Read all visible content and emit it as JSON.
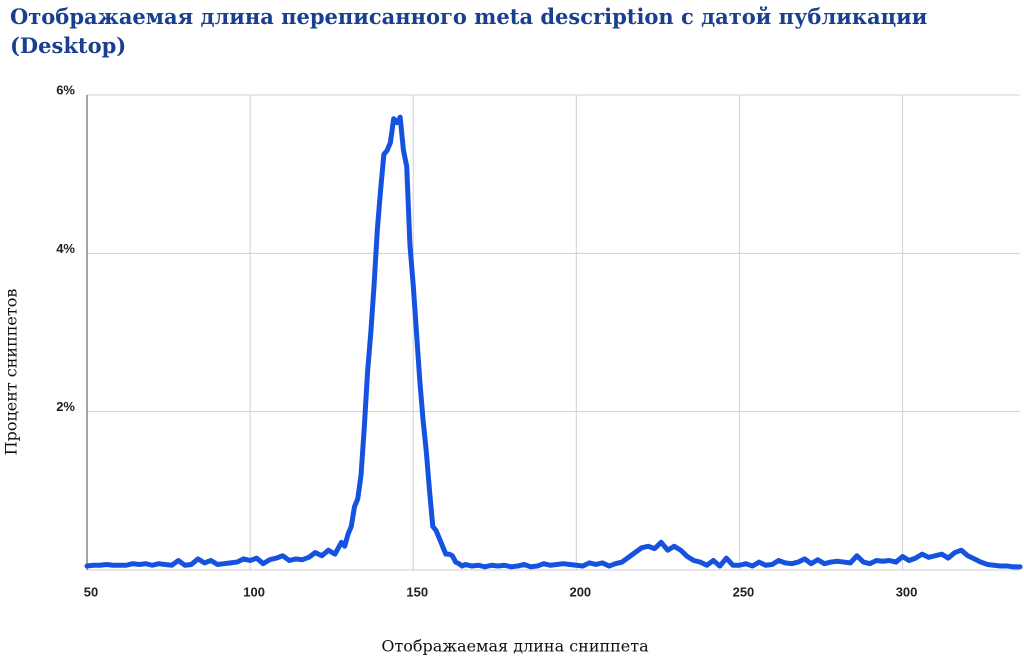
{
  "chart_data": {
    "type": "line",
    "title": "Отображаемая длина переписанного meta description с датой публикации (Desktop)",
    "x_label": "Отображаемая длина сниппета",
    "y_label": "Процент сниппетов",
    "color": "#1652e0",
    "grid": true,
    "xlim": [
      50,
      336
    ],
    "xticks": [
      50,
      100,
      150,
      200,
      250,
      300
    ],
    "ylim": [
      0,
      6
    ],
    "yticks": [
      {
        "value": 2,
        "label": "2%"
      },
      {
        "value": 4,
        "label": "4%"
      },
      {
        "value": 6,
        "label": "6%"
      }
    ],
    "x": [
      50,
      52,
      54,
      56,
      58,
      60,
      62,
      64,
      66,
      68,
      70,
      72,
      74,
      76,
      78,
      80,
      82,
      84,
      86,
      88,
      90,
      92,
      94,
      96,
      98,
      100,
      102,
      104,
      106,
      108,
      110,
      112,
      114,
      116,
      118,
      120,
      122,
      124,
      126,
      128,
      129,
      130,
      131,
      132,
      133,
      134,
      135,
      136,
      137,
      138,
      139,
      140,
      141,
      142,
      143,
      144,
      145,
      146,
      147,
      148,
      149,
      150,
      151,
      152,
      153,
      154,
      155,
      156,
      157,
      158,
      159,
      160,
      161,
      162,
      163,
      164,
      165,
      166,
      168,
      170,
      172,
      174,
      176,
      178,
      180,
      182,
      184,
      186,
      188,
      190,
      192,
      194,
      196,
      198,
      200,
      202,
      204,
      206,
      208,
      210,
      212,
      214,
      216,
      218,
      220,
      222,
      224,
      226,
      228,
      230,
      232,
      234,
      236,
      238,
      240,
      242,
      244,
      246,
      248,
      250,
      252,
      254,
      256,
      258,
      260,
      262,
      264,
      266,
      268,
      270,
      272,
      274,
      276,
      278,
      280,
      282,
      284,
      286,
      288,
      290,
      292,
      294,
      296,
      298,
      300,
      302,
      304,
      306,
      308,
      310,
      312,
      314,
      316,
      318,
      320,
      322,
      324,
      326,
      328,
      330,
      332,
      334,
      336
    ],
    "values": [
      0.05,
      0.06,
      0.06,
      0.07,
      0.06,
      0.06,
      0.06,
      0.08,
      0.07,
      0.08,
      0.06,
      0.08,
      0.07,
      0.06,
      0.12,
      0.06,
      0.07,
      0.14,
      0.09,
      0.12,
      0.07,
      0.08,
      0.09,
      0.1,
      0.14,
      0.12,
      0.15,
      0.08,
      0.13,
      0.15,
      0.18,
      0.12,
      0.14,
      0.13,
      0.16,
      0.22,
      0.18,
      0.25,
      0.2,
      0.35,
      0.3,
      0.45,
      0.55,
      0.8,
      0.9,
      1.2,
      1.8,
      2.5,
      3.0,
      3.6,
      4.3,
      4.8,
      5.25,
      5.3,
      5.4,
      5.7,
      5.65,
      5.72,
      5.3,
      5.1,
      4.1,
      3.6,
      3.0,
      2.4,
      1.9,
      1.5,
      1.0,
      0.55,
      0.5,
      0.4,
      0.3,
      0.2,
      0.2,
      0.18,
      0.1,
      0.08,
      0.05,
      0.07,
      0.05,
      0.06,
      0.04,
      0.06,
      0.05,
      0.06,
      0.04,
      0.05,
      0.07,
      0.04,
      0.05,
      0.08,
      0.06,
      0.07,
      0.08,
      0.07,
      0.06,
      0.05,
      0.09,
      0.07,
      0.09,
      0.05,
      0.08,
      0.1,
      0.16,
      0.22,
      0.28,
      0.3,
      0.27,
      0.35,
      0.25,
      0.3,
      0.25,
      0.17,
      0.12,
      0.1,
      0.06,
      0.12,
      0.05,
      0.15,
      0.06,
      0.06,
      0.08,
      0.05,
      0.1,
      0.06,
      0.07,
      0.12,
      0.09,
      0.08,
      0.1,
      0.14,
      0.08,
      0.13,
      0.08,
      0.1,
      0.11,
      0.1,
      0.09,
      0.18,
      0.1,
      0.08,
      0.12,
      0.11,
      0.12,
      0.1,
      0.17,
      0.12,
      0.15,
      0.2,
      0.16,
      0.18,
      0.2,
      0.15,
      0.22,
      0.25,
      0.18,
      0.14,
      0.1,
      0.07,
      0.06,
      0.05,
      0.05,
      0.04,
      0.04
    ]
  }
}
